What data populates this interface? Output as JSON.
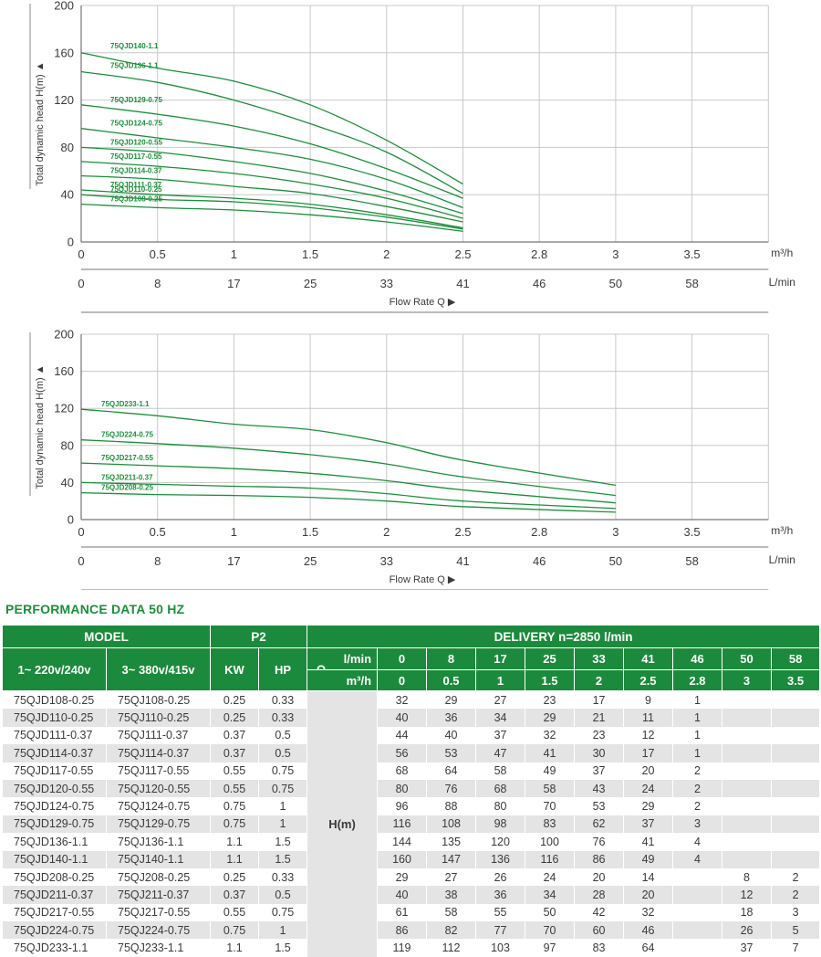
{
  "chart_data": [
    {
      "type": "line",
      "ylabel": "Total dynamic head H(m)",
      "ylim": [
        0,
        200
      ],
      "yticks": [
        "0",
        "40",
        "80",
        "120",
        "160",
        "200"
      ],
      "x_ticks_m3h": [
        "0",
        "0.5",
        "1",
        "1.5",
        "2",
        "2.5",
        "2.8",
        "3",
        "3.5"
      ],
      "x_ticks_lmin": [
        "0",
        "8",
        "17",
        "25",
        "33",
        "41",
        "46",
        "50",
        "58"
      ],
      "x_unit_m3h": "m³/h",
      "x_unit_lmin": "L/min",
      "xlabel": "Flow Rate Q",
      "x": [
        0,
        0.5,
        1,
        1.5,
        2,
        2.5
      ],
      "series": [
        {
          "name": "75QJD140-1.1",
          "values": [
            160,
            147,
            136,
            116,
            86,
            49
          ]
        },
        {
          "name": "75QJD136-1.1",
          "values": [
            144,
            135,
            120,
            100,
            76,
            41
          ]
        },
        {
          "name": "75QJD129-0.75",
          "values": [
            116,
            108,
            98,
            83,
            62,
            37
          ]
        },
        {
          "name": "75QJD124-0.75",
          "values": [
            96,
            88,
            80,
            70,
            53,
            29
          ]
        },
        {
          "name": "75QJD120-0.55",
          "values": [
            80,
            76,
            68,
            58,
            43,
            24
          ]
        },
        {
          "name": "75QJD117-0.55",
          "values": [
            68,
            64,
            58,
            49,
            37,
            20
          ]
        },
        {
          "name": "75QJD114-0.37",
          "values": [
            56,
            53,
            47,
            41,
            30,
            17
          ]
        },
        {
          "name": "75QJD111-0.37",
          "values": [
            44,
            40,
            37,
            32,
            23,
            12
          ]
        },
        {
          "name": "75QJD110-0.25",
          "values": [
            40,
            36,
            34,
            29,
            21,
            11
          ]
        },
        {
          "name": "75QJD108-0.25",
          "values": [
            32,
            29,
            27,
            23,
            17,
            9
          ]
        }
      ]
    },
    {
      "type": "line",
      "ylabel": "Total dynamic head H(m)",
      "ylim": [
        0,
        200
      ],
      "yticks": [
        "0",
        "40",
        "80",
        "120",
        "160",
        "200"
      ],
      "x_ticks_m3h": [
        "0",
        "0.5",
        "1",
        "1.5",
        "2",
        "2.5",
        "2.8",
        "3",
        "3.5"
      ],
      "x_ticks_lmin": [
        "0",
        "8",
        "17",
        "25",
        "33",
        "41",
        "46",
        "50",
        "58"
      ],
      "x_unit_m3h": "m³/h",
      "x_unit_lmin": "L/min",
      "xlabel": "Flow Rate Q",
      "x": [
        0,
        0.5,
        1,
        1.5,
        2,
        2.5,
        3
      ],
      "series": [
        {
          "name": "75QJD233-1.1",
          "values": [
            119,
            112,
            103,
            97,
            83,
            64,
            37
          ]
        },
        {
          "name": "75QJD224-0.75",
          "values": [
            86,
            82,
            77,
            70,
            60,
            46,
            26
          ]
        },
        {
          "name": "75QJD217-0.55",
          "values": [
            61,
            58,
            55,
            50,
            42,
            32,
            18
          ]
        },
        {
          "name": "75QJD211-0.37",
          "values": [
            40,
            38,
            36,
            34,
            28,
            20,
            12
          ]
        },
        {
          "name": "75QJD208-0.25",
          "values": [
            29,
            27,
            26,
            24,
            20,
            14,
            8
          ]
        }
      ]
    }
  ],
  "colors": {
    "curve": "#1b8f3a",
    "header": "#1c8a3c",
    "grid": "#c8c8c8",
    "row_alt": "#e4e4e4"
  },
  "table": {
    "title": "PERFORMANCE DATA 50 HZ",
    "model_header": "MODEL",
    "p2_header": "P2",
    "delivery_header": "DELIVERY  n=2850 l/min",
    "col_1ph": "1~ 220v/240v",
    "col_3ph": "3~ 380v/415v",
    "col_kw": "KW",
    "col_hp": "HP",
    "q_label": "Q",
    "unit_lmin": "l/min",
    "unit_m3h": "m³/h",
    "flow_lmin": [
      "0",
      "8",
      "17",
      "25",
      "33",
      "41",
      "46",
      "50",
      "58"
    ],
    "flow_m3h": [
      "0",
      "0.5",
      "1",
      "1.5",
      "2",
      "2.5",
      "2.8",
      "3",
      "3.5"
    ],
    "head_label": "H(m)",
    "rows": [
      {
        "m1": "75QJD108-0.25",
        "m3": "75QJ108-0.25",
        "kw": "0.25",
        "hp": "0.33",
        "h": [
          "32",
          "29",
          "27",
          "23",
          "17",
          "9",
          "1",
          "",
          ""
        ]
      },
      {
        "m1": "75QJD110-0.25",
        "m3": "75QJ110-0.25",
        "kw": "0.25",
        "hp": "0.33",
        "h": [
          "40",
          "36",
          "34",
          "29",
          "21",
          "11",
          "1",
          "",
          ""
        ]
      },
      {
        "m1": "75QJD111-0.37",
        "m3": "75QJ111-0.37",
        "kw": "0.37",
        "hp": "0.5",
        "h": [
          "44",
          "40",
          "37",
          "32",
          "23",
          "12",
          "1",
          "",
          ""
        ]
      },
      {
        "m1": "75QJD114-0.37",
        "m3": "75QJ114-0.37",
        "kw": "0.37",
        "hp": "0.5",
        "h": [
          "56",
          "53",
          "47",
          "41",
          "30",
          "17",
          "1",
          "",
          ""
        ]
      },
      {
        "m1": "75QJD117-0.55",
        "m3": "75QJ117-0.55",
        "kw": "0.55",
        "hp": "0.75",
        "h": [
          "68",
          "64",
          "58",
          "49",
          "37",
          "20",
          "2",
          "",
          ""
        ]
      },
      {
        "m1": "75QJD120-0.55",
        "m3": "75QJ120-0.55",
        "kw": "0.55",
        "hp": "0.75",
        "h": [
          "80",
          "76",
          "68",
          "58",
          "43",
          "24",
          "2",
          "",
          ""
        ]
      },
      {
        "m1": "75QJD124-0.75",
        "m3": "75QJ124-0.75",
        "kw": "0.75",
        "hp": "1",
        "h": [
          "96",
          "88",
          "80",
          "70",
          "53",
          "29",
          "2",
          "",
          ""
        ]
      },
      {
        "m1": "75QJD129-0.75",
        "m3": "75QJ129-0.75",
        "kw": "0.75",
        "hp": "1",
        "h": [
          "116",
          "108",
          "98",
          "83",
          "62",
          "37",
          "3",
          "",
          ""
        ]
      },
      {
        "m1": "75QJD136-1.1",
        "m3": "75QJ136-1.1",
        "kw": "1.1",
        "hp": "1.5",
        "h": [
          "144",
          "135",
          "120",
          "100",
          "76",
          "41",
          "4",
          "",
          ""
        ]
      },
      {
        "m1": "75QJD140-1.1",
        "m3": "75QJ140-1.1",
        "kw": "1.1",
        "hp": "1.5",
        "h": [
          "160",
          "147",
          "136",
          "116",
          "86",
          "49",
          "4",
          "",
          ""
        ]
      },
      {
        "m1": "75QJD208-0.25",
        "m3": "75QJ208-0.25",
        "kw": "0.25",
        "hp": "0.33",
        "h": [
          "29",
          "27",
          "26",
          "24",
          "20",
          "14",
          "",
          "8",
          "2"
        ]
      },
      {
        "m1": "75QJD211-0.37",
        "m3": "75QJ211-0.37",
        "kw": "0.37",
        "hp": "0.5",
        "h": [
          "40",
          "38",
          "36",
          "34",
          "28",
          "20",
          "",
          "12",
          "2"
        ]
      },
      {
        "m1": "75QJD217-0.55",
        "m3": "75QJ217-0.55",
        "kw": "0.55",
        "hp": "0.75",
        "h": [
          "61",
          "58",
          "55",
          "50",
          "42",
          "32",
          "",
          "18",
          "3"
        ]
      },
      {
        "m1": "75QJD224-0.75",
        "m3": "75QJ224-0.75",
        "kw": "0.75",
        "hp": "1",
        "h": [
          "86",
          "82",
          "77",
          "70",
          "60",
          "46",
          "",
          "26",
          "5"
        ]
      },
      {
        "m1": "75QJD233-1.1",
        "m3": "75QJ233-1.1",
        "kw": "1.1",
        "hp": "1.5",
        "h": [
          "119",
          "112",
          "103",
          "97",
          "83",
          "64",
          "",
          "37",
          "7"
        ]
      }
    ]
  }
}
